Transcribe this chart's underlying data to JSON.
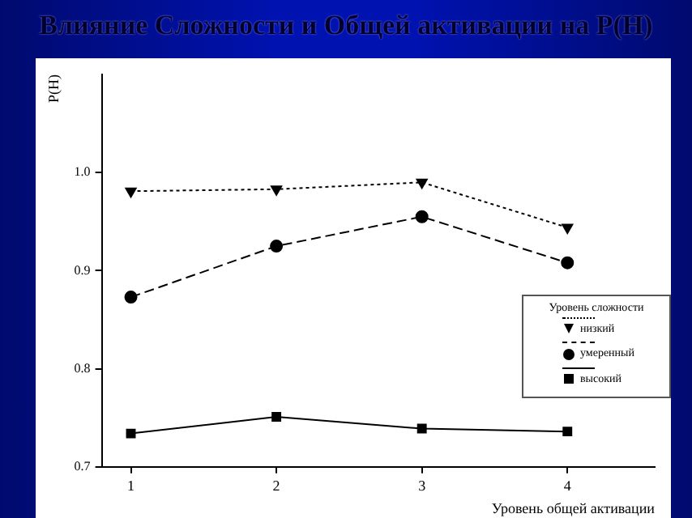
{
  "chart_data": {
    "type": "line",
    "title": "Влияние Сложности и Общей активации на P(H)",
    "xlabel": "Уровень общей активации",
    "ylabel": "P(H)",
    "legend_title": "Уровень сложности",
    "x": [
      1,
      2,
      3,
      4
    ],
    "xlim": [
      0.8,
      4.6
    ],
    "xticks": [
      1,
      2,
      3,
      4
    ],
    "ylim": [
      0.7,
      1.1
    ],
    "yticks": [
      0.7,
      0.8,
      0.9,
      {
        "value": 1,
        "label": "1.0"
      }
    ],
    "grid": false,
    "legend": "bottom right",
    "series": [
      {
        "name": "низкий",
        "color": "#000000",
        "values": [
          0.981,
          0.983,
          0.99,
          0.944
        ],
        "marker": "triangle",
        "line_style": "dotted"
      },
      {
        "name": "умеренный",
        "color": "#000000",
        "values": [
          0.873,
          0.925,
          0.955,
          0.908
        ],
        "marker": "circle",
        "line_style": "dashed"
      },
      {
        "name": "высокий",
        "color": "#000000",
        "values": [
          0.734,
          0.751,
          0.739,
          0.736
        ],
        "marker": "square",
        "line_style": "solid"
      }
    ]
  }
}
